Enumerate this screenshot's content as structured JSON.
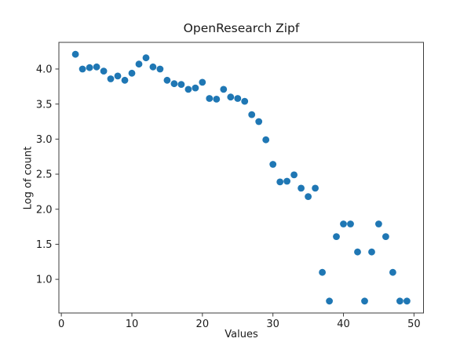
{
  "figure": {
    "background": "#ffffff",
    "text_color": "#1a1a1a",
    "spine_color": "#3c3c3c"
  },
  "chart_data": {
    "type": "scatter",
    "title": "OpenResearch Zipf",
    "xlabel": "Values",
    "ylabel": "Log of count",
    "marker_color": "#1f77b4",
    "grid": false,
    "legend": "none",
    "xlim": [
      -0.35,
      51.35
    ],
    "ylim": [
      0.52,
      4.38
    ],
    "xticks": {
      "values": [
        0,
        10,
        20,
        30,
        40,
        50
      ],
      "labels": [
        "0",
        "10",
        "20",
        "30",
        "40",
        "50"
      ]
    },
    "yticks": {
      "values": [
        1.0,
        1.5,
        2.0,
        2.5,
        3.0,
        3.5,
        4.0
      ],
      "labels": [
        "1.0",
        "1.5",
        "2.0",
        "2.5",
        "3.0",
        "3.5",
        "4.0"
      ]
    },
    "x": [
      2,
      3,
      4,
      5,
      6,
      7,
      8,
      9,
      10,
      11,
      12,
      13,
      14,
      15,
      16,
      17,
      18,
      19,
      20,
      21,
      22,
      23,
      24,
      25,
      26,
      27,
      28,
      29,
      30,
      31,
      32,
      33,
      34,
      35,
      36,
      37,
      38,
      39,
      40,
      41,
      42,
      43,
      44,
      45,
      46,
      47,
      48,
      49
    ],
    "y": [
      4.21,
      4.0,
      4.02,
      4.03,
      3.97,
      3.86,
      3.9,
      3.84,
      3.94,
      4.07,
      4.16,
      4.03,
      4.0,
      3.84,
      3.79,
      3.78,
      3.71,
      3.73,
      3.81,
      3.58,
      3.57,
      3.71,
      3.6,
      3.58,
      3.54,
      3.35,
      3.25,
      2.99,
      2.64,
      2.39,
      2.4,
      2.49,
      2.3,
      2.18,
      2.3,
      1.1,
      0.69,
      1.61,
      1.79,
      1.79,
      1.39,
      0.69,
      1.39,
      1.79,
      1.61,
      1.1,
      0.69,
      0.69
    ]
  }
}
